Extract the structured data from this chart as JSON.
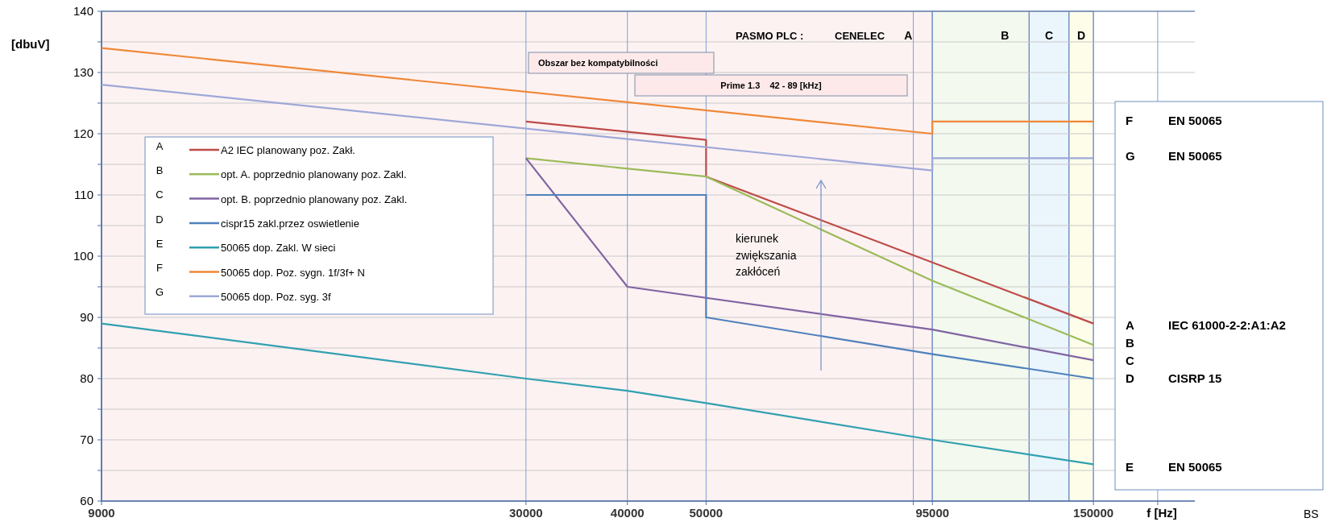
{
  "chart_data": {
    "type": "line",
    "xlabel": "f [Hz]",
    "ylabel": "[dbuV]",
    "log": "x",
    "xlim": [
      9000,
      200000
    ],
    "xticks": [
      9000,
      30000,
      40000,
      50000,
      {
        "value": 90000,
        "label": null
      },
      95000,
      150000,
      {
        "value": 180000,
        "label": null
      }
    ],
    "ylim": [
      60,
      140
    ],
    "yticks": [
      60,
      {
        "value": 65,
        "label": null
      },
      70,
      {
        "value": 75,
        "label": null
      },
      80,
      {
        "value": 85,
        "label": null
      },
      90,
      {
        "value": 95,
        "label": null
      },
      100,
      {
        "value": 105,
        "label": null
      },
      110,
      {
        "value": 115,
        "label": null
      },
      120,
      {
        "value": 125,
        "label": null
      },
      130,
      {
        "value": 135,
        "label": null
      },
      140
    ],
    "grid": true,
    "legend": "left",
    "series": [
      {
        "name": "A2 IEC planowany poz. Zakł.",
        "color": "#be4b48",
        "x": [
          30000,
          50000,
          50000,
          150000
        ],
        "values": [
          122,
          119,
          113,
          89
        ]
      },
      {
        "name": "opt. A. poprzednio planowany poz. Zakl.",
        "color": "#9bbb59",
        "x": [
          30000,
          50000,
          95000,
          150000
        ],
        "values": [
          116,
          113,
          96,
          85.5
        ]
      },
      {
        "name": "opt. B. poprzednio planowany poz. Zakl.",
        "color": "#8064a2",
        "x": [
          30000,
          40000,
          95000,
          150000
        ],
        "values": [
          116,
          95,
          88,
          83
        ]
      },
      {
        "name": "cispr15 zakl.przez  oswietlenie",
        "color": "#4f81bd",
        "x": [
          30000,
          50000,
          50000,
          95000,
          150000
        ],
        "values": [
          110,
          110,
          90,
          84,
          80
        ]
      },
      {
        "name": "50065 dop. Zakl. W sieci",
        "color": "#31a0b0",
        "x": [
          9000,
          30000,
          40000,
          50000,
          95000,
          150000
        ],
        "values": [
          89,
          80,
          78,
          76,
          70,
          66
        ]
      },
      {
        "name": "50065 dop. Poz. sygn. 1f/3f+ N",
        "color": "#f08838",
        "x": [
          9000,
          95000,
          95000,
          150000
        ],
        "values": [
          134,
          120,
          122,
          122
        ]
      },
      {
        "name": "50065 dop. Poz. syg. 3f",
        "color": "#9ea8d8",
        "x": [
          9000,
          95000,
          95000,
          150000
        ],
        "values": [
          128,
          114,
          116,
          116
        ]
      }
    ],
    "bands": [
      {
        "axis": "x",
        "from": 9000,
        "to": 95000,
        "label": "A",
        "color": "#fdf2f2"
      },
      {
        "axis": "x",
        "from": 95000,
        "to": 125000,
        "label": "B",
        "color": "#f3f9ee"
      },
      {
        "axis": "x",
        "from": 125000,
        "to": 140000,
        "label": "C",
        "color": "#eaf5fc"
      },
      {
        "axis": "x",
        "from": 140000,
        "to": 150000,
        "label": "D",
        "color": "#fdfdea"
      }
    ],
    "annotations": [
      "Obszar bez kompatybilności",
      "Prime 1.3    42 - 89 [kHz]",
      "PASMO PLC :",
      "CENELEC",
      "kierunek zwiększania zakłóceń",
      "A",
      "B",
      "C",
      "D",
      "E",
      "F",
      "G",
      "F",
      "EN 50065",
      "G",
      "EN 50065",
      "A",
      "IEC 61000-2-2:A1:A2",
      "B",
      "C",
      "D",
      "CISRP 15",
      "E",
      "EN 50065",
      "BS"
    ]
  }
}
